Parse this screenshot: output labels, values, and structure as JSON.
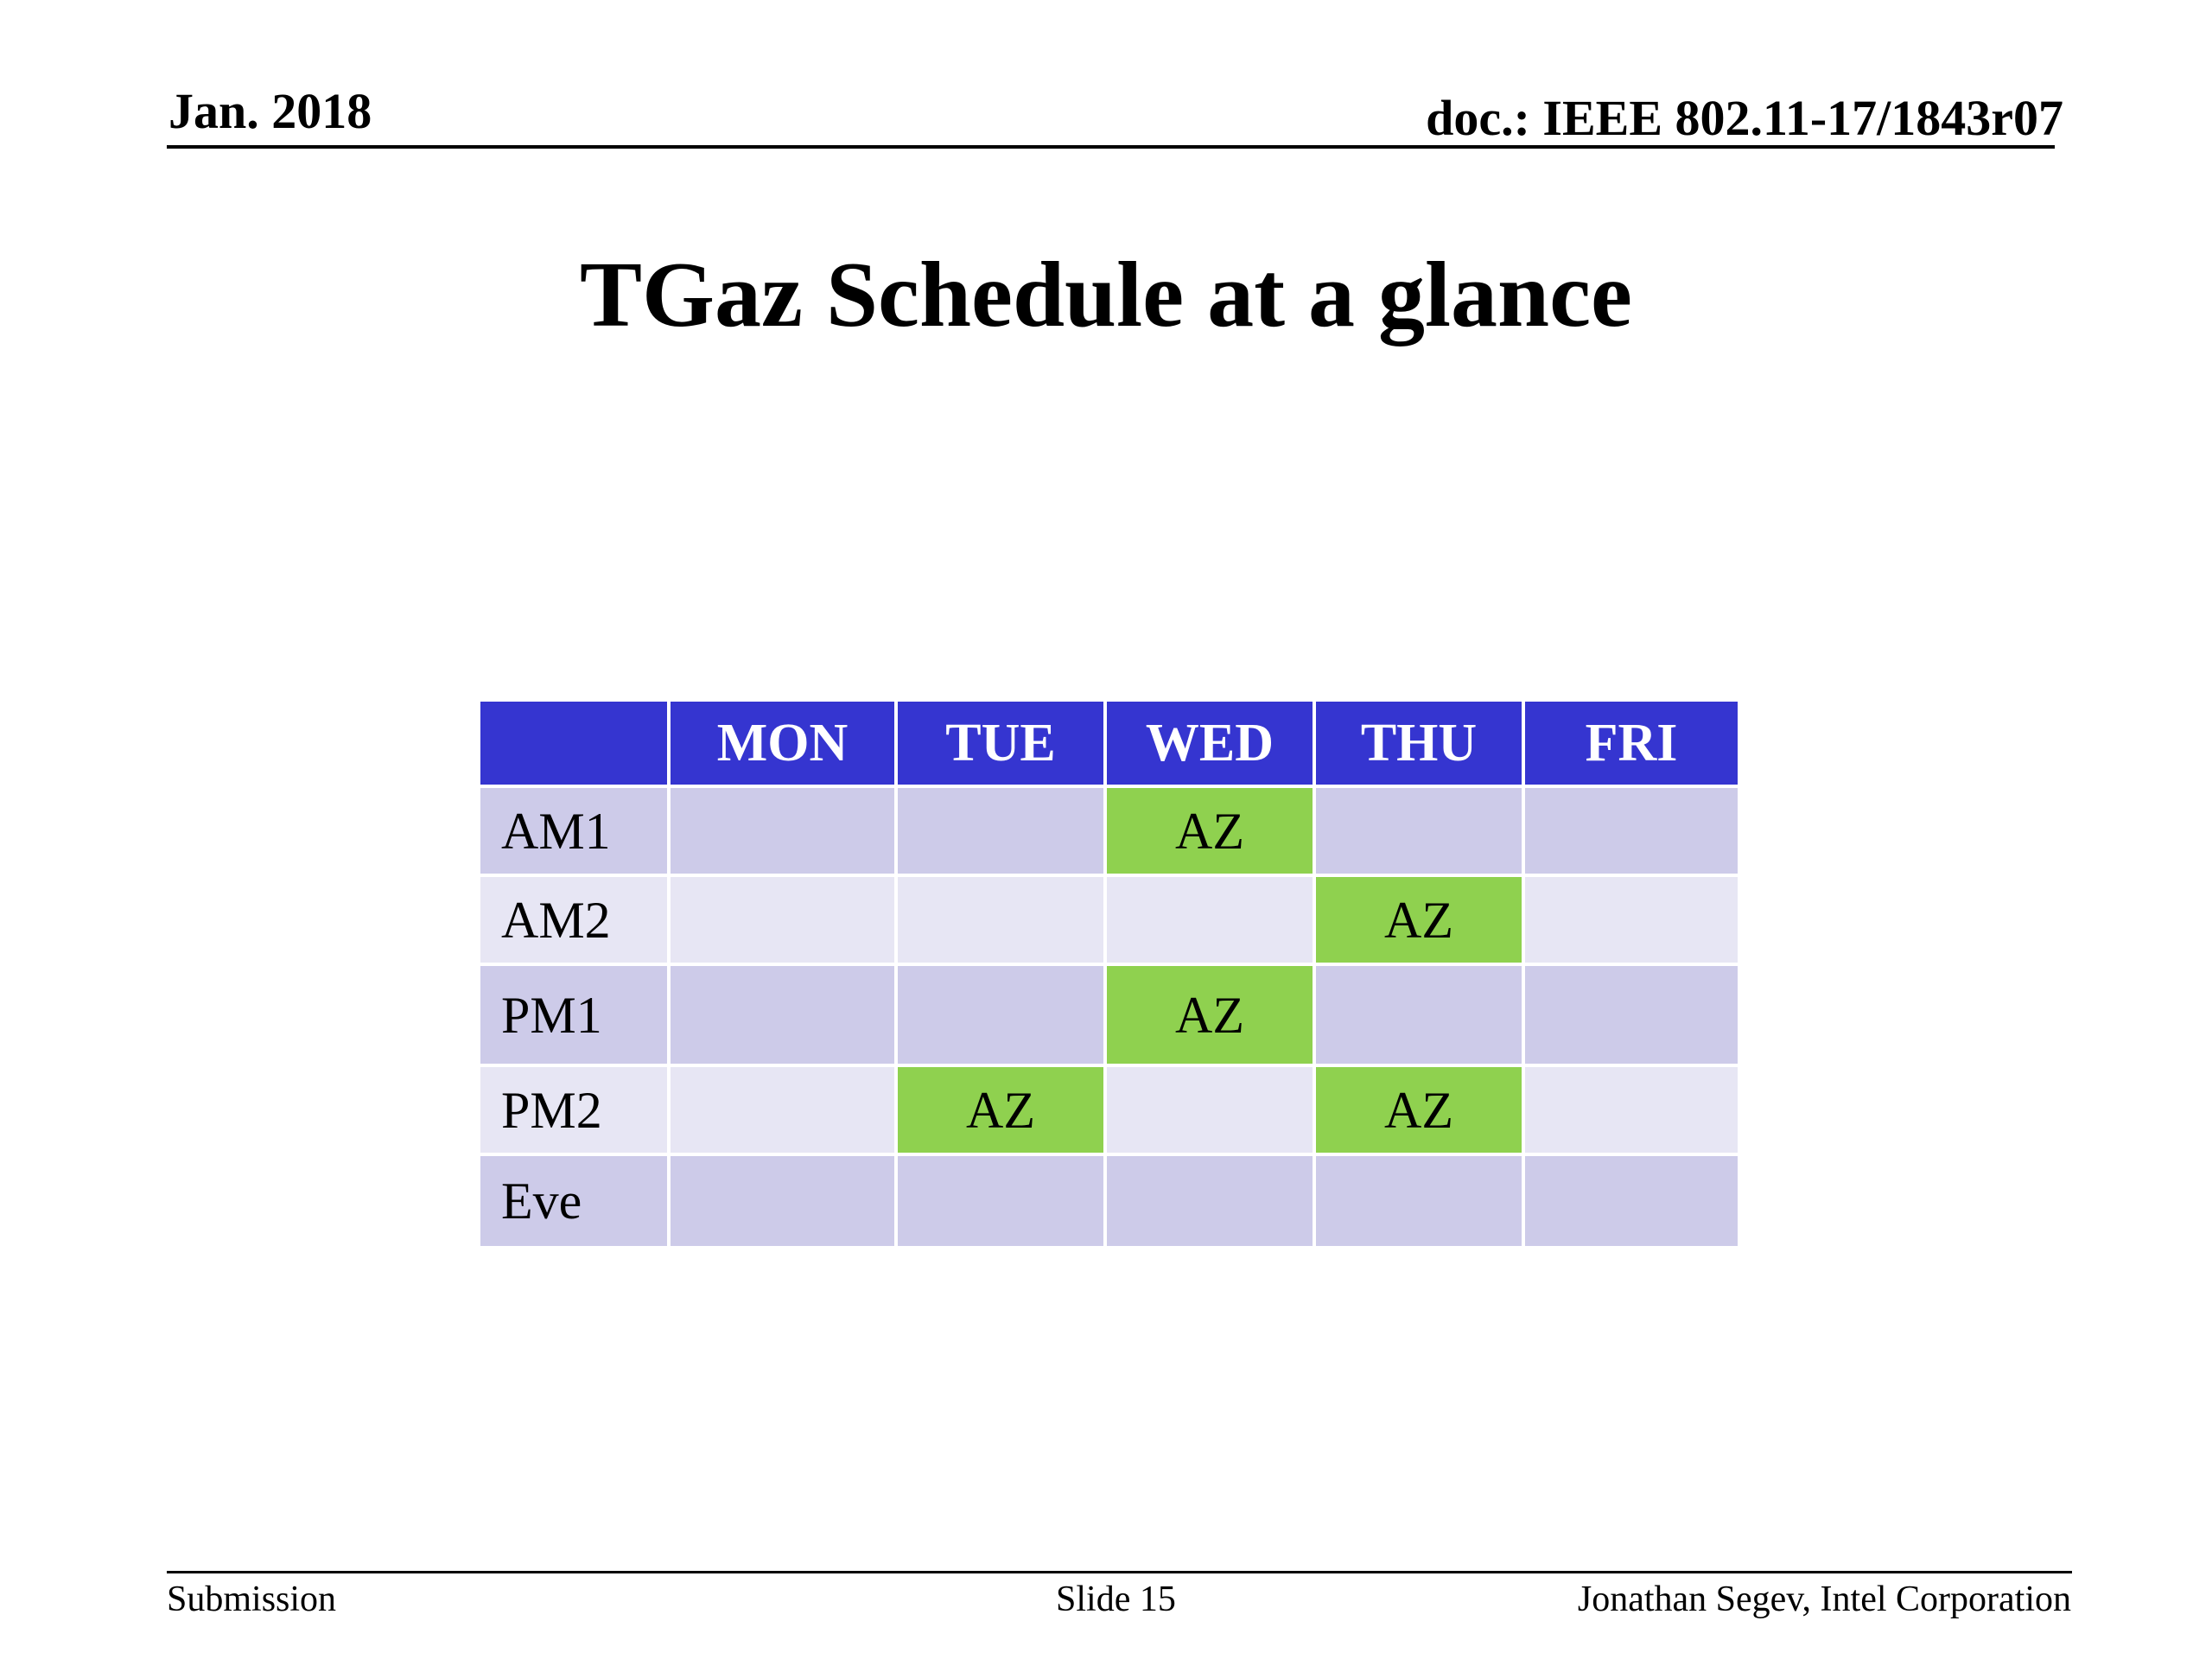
{
  "header": {
    "date": "Jan. 2018",
    "doc": "doc.: IEEE 802.11-17/1843r07"
  },
  "title": "TGaz Schedule at a glance",
  "schedule": {
    "corner": "",
    "days": [
      "MON",
      "TUE",
      "WED",
      "THU",
      "FRI"
    ],
    "rows": [
      {
        "label": "AM1",
        "cells": [
          "",
          "",
          "AZ",
          "",
          ""
        ]
      },
      {
        "label": "AM2",
        "cells": [
          "",
          "",
          "",
          "AZ",
          ""
        ]
      },
      {
        "label": "PM1",
        "cells": [
          "",
          "",
          "AZ",
          "",
          ""
        ]
      },
      {
        "label": "PM2",
        "cells": [
          "",
          "AZ",
          "",
          "AZ",
          ""
        ]
      },
      {
        "label": "Eve",
        "cells": [
          "",
          "",
          "",
          "",
          ""
        ]
      }
    ]
  },
  "colors": {
    "header_fill": "#3535d0",
    "row_dark": "#cdcbe9",
    "row_light": "#e7e6f4",
    "session_fill": "#8fd14f"
  },
  "footer": {
    "left": "Submission",
    "center": "Slide 15",
    "right": "Jonathan Segev, Intel Corporation"
  }
}
